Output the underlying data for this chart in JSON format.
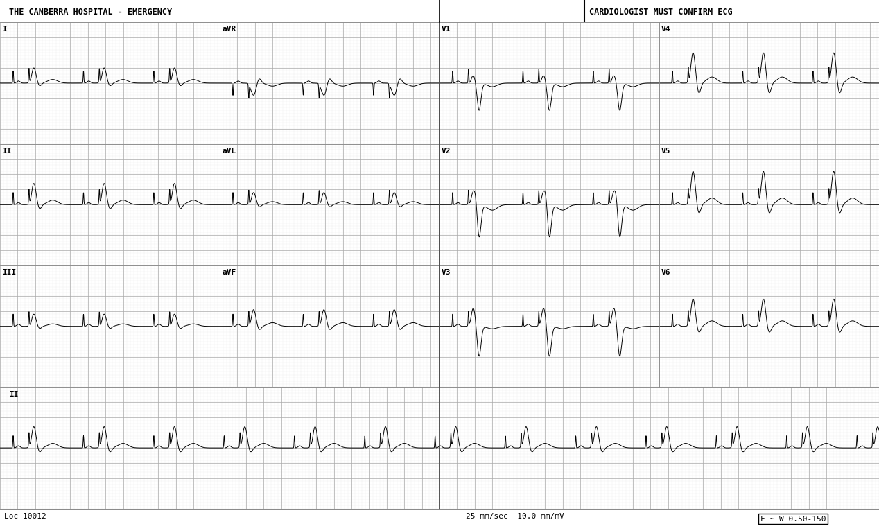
{
  "bg_color": "#ffffff",
  "grid_minor_color": "#cccccc",
  "grid_major_color": "#aaaaaa",
  "line_color": "#000000",
  "title_left": "THE CANBERRA HOSPITAL - EMERGENCY",
  "title_right": "CARDIOLOGIST MUST CONFIRM ECG",
  "footer_left": "Loc 10012",
  "footer_center": "25 mm/sec  10.0 mm/mV",
  "footer_right": "F ~ W 0.50-150",
  "fig_width": 12.68,
  "fig_height": 7.66,
  "dpi": 100,
  "fs": 500,
  "beat_interval": 0.8,
  "col_duration": 2.5,
  "rhythm_duration": 10.0
}
